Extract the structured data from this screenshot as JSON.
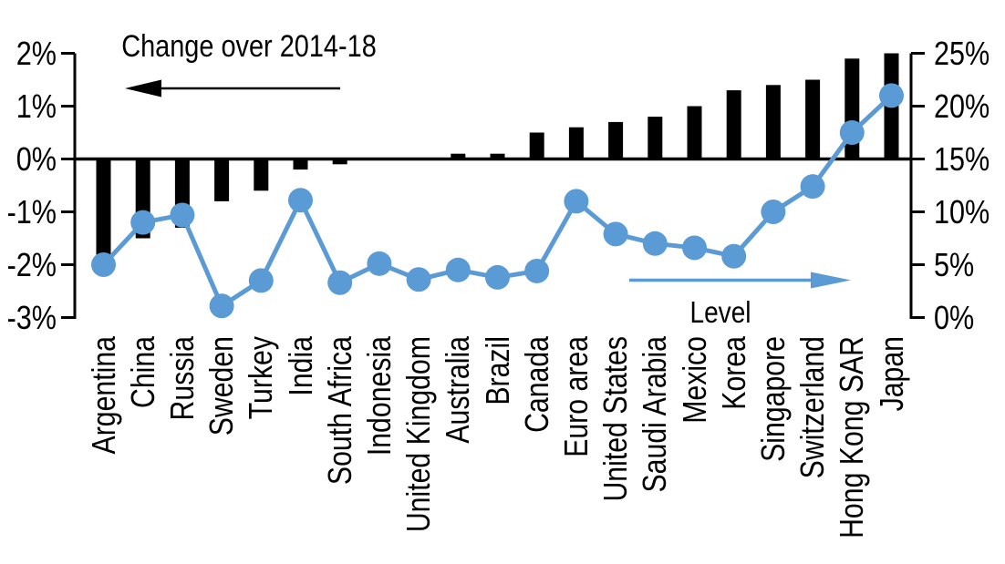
{
  "chart_data": {
    "type": "bar+line-dual-axis",
    "categories": [
      "Argentina",
      "China",
      "Russia",
      "Sweden",
      "Turkey",
      "India",
      "South Africa",
      "Indonesia",
      "United Kingdom",
      "Australia",
      "Brazil",
      "Canada",
      "Euro area",
      "United States",
      "Saudi Arabia",
      "Mexico",
      "Korea",
      "Singapore",
      "Switzerland",
      "Hong Kong SAR",
      "Japan"
    ],
    "series": [
      {
        "name": "Change over 2014-18",
        "type": "bar",
        "axis": "left",
        "unit": "%",
        "color": "#000000",
        "values": [
          -2.0,
          -1.5,
          -1.3,
          -0.8,
          -0.6,
          -0.2,
          -0.1,
          0.0,
          0.0,
          0.1,
          0.1,
          0.5,
          0.6,
          0.7,
          0.8,
          1.0,
          1.3,
          1.4,
          1.5,
          1.9,
          2.0
        ]
      },
      {
        "name": "Level",
        "type": "line",
        "axis": "right",
        "unit": "%",
        "color": "#5B9BD5",
        "values": [
          5.0,
          9.0,
          9.7,
          1.1,
          3.5,
          11.1,
          3.3,
          5.1,
          3.6,
          4.5,
          3.8,
          4.4,
          11.0,
          7.9,
          7.0,
          6.6,
          5.8,
          10.0,
          12.4,
          17.5,
          21.0
        ]
      }
    ],
    "left_axis": {
      "tick_labels": [
        "2%",
        "1%",
        "0%",
        "-1%",
        "-2%",
        "-3%"
      ],
      "tick_values": [
        2,
        1,
        0,
        -1,
        -2,
        -3
      ],
      "min": -3,
      "max": 2
    },
    "right_axis": {
      "tick_labels": [
        "25%",
        "20%",
        "15%",
        "10%",
        "5%",
        "0%"
      ],
      "tick_values": [
        25,
        20,
        15,
        10,
        5,
        0
      ],
      "min": 0,
      "max": 25
    },
    "annotations": {
      "change_label": "Change over 2014-18",
      "level_label": "Level",
      "change_arrow_direction": "left",
      "level_arrow_direction": "right"
    },
    "grid": false,
    "legend_position": "in-plot-arrows",
    "background": "#ffffff"
  }
}
